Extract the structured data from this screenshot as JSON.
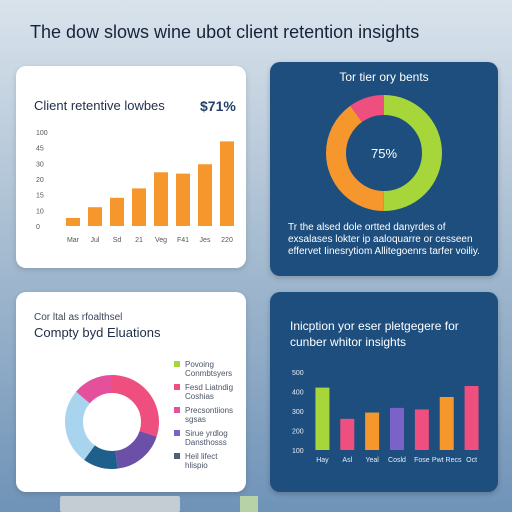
{
  "headline": "The dow slows wine ubot client retention insights",
  "colors": {
    "orange": "#f6972d",
    "navy": "#1d4e7e",
    "lime": "#a7d63a",
    "pink": "#ee4f7f",
    "purple": "#6c4fa6"
  },
  "chart_data": [
    {
      "type": "bar",
      "title": "Client retentive lowbes",
      "stat": "$71%",
      "categories": [
        "Mar",
        "Jul",
        "Sd",
        "21",
        "Veg",
        "F41",
        "Jes",
        "220"
      ],
      "values": [
        6,
        14,
        21,
        28,
        40,
        39,
        46,
        63
      ],
      "yticks": [
        "100",
        "45",
        "30",
        "20",
        "15",
        "10",
        "0"
      ],
      "color": "#f6972d"
    },
    {
      "type": "pie",
      "title": "Tor tier ory bents",
      "center_label": "75%",
      "slices": [
        {
          "value": 50,
          "color": "#a7d63a"
        },
        {
          "value": 40,
          "color": "#f6972d"
        },
        {
          "value": 10,
          "color": "#ee4f7f"
        }
      ],
      "description": "Tr the alsed dole ortted danyrdes of exsalases lokter ip aaloquarre or cesseen effervet Iinesrytiom Allitegoenrs tarfer voiliy."
    },
    {
      "type": "pie",
      "title_small": "Cor ltal as rfoalthsel",
      "title": "Compty byd Eluations",
      "slices": [
        {
          "value": 30,
          "color": "#ee4f7f"
        },
        {
          "value": 18,
          "color": "#6c4fa6"
        },
        {
          "value": 12,
          "color": "#1f5f8b"
        },
        {
          "value": 26,
          "color": "#a8d4ee"
        },
        {
          "value": 14,
          "color": "#e4509c"
        }
      ],
      "legend": [
        {
          "label": "Povoing Conmbtsyers",
          "color": "#a7d63a"
        },
        {
          "label": "Fesd Liatndig Coshias",
          "color": "#ee4f7f"
        },
        {
          "label": "Precsontiions sgsas",
          "color": "#e4509c"
        },
        {
          "label": "Sirue yrdlog Dansthosss",
          "color": "#7a62c9"
        },
        {
          "label": "Heil lifect hlispio",
          "color": "#4d6175"
        }
      ]
    },
    {
      "type": "bar",
      "title": "Inicption yor eser pletgegere for cunber whitor insights",
      "categories": [
        "Hay",
        "Asl",
        "Yeal",
        "Cosld",
        "Fose",
        "Pwt Recs",
        "Oct"
      ],
      "values": [
        400,
        200,
        240,
        270,
        260,
        340,
        410
      ],
      "colors": [
        "#a7d63a",
        "#ee4f7f",
        "#f6972d",
        "#7a62c9",
        "#ee4f7f",
        "#f6972d",
        "#ee4f7f"
      ],
      "yticks": [
        "500",
        "400",
        "300",
        "200",
        "100"
      ]
    }
  ]
}
